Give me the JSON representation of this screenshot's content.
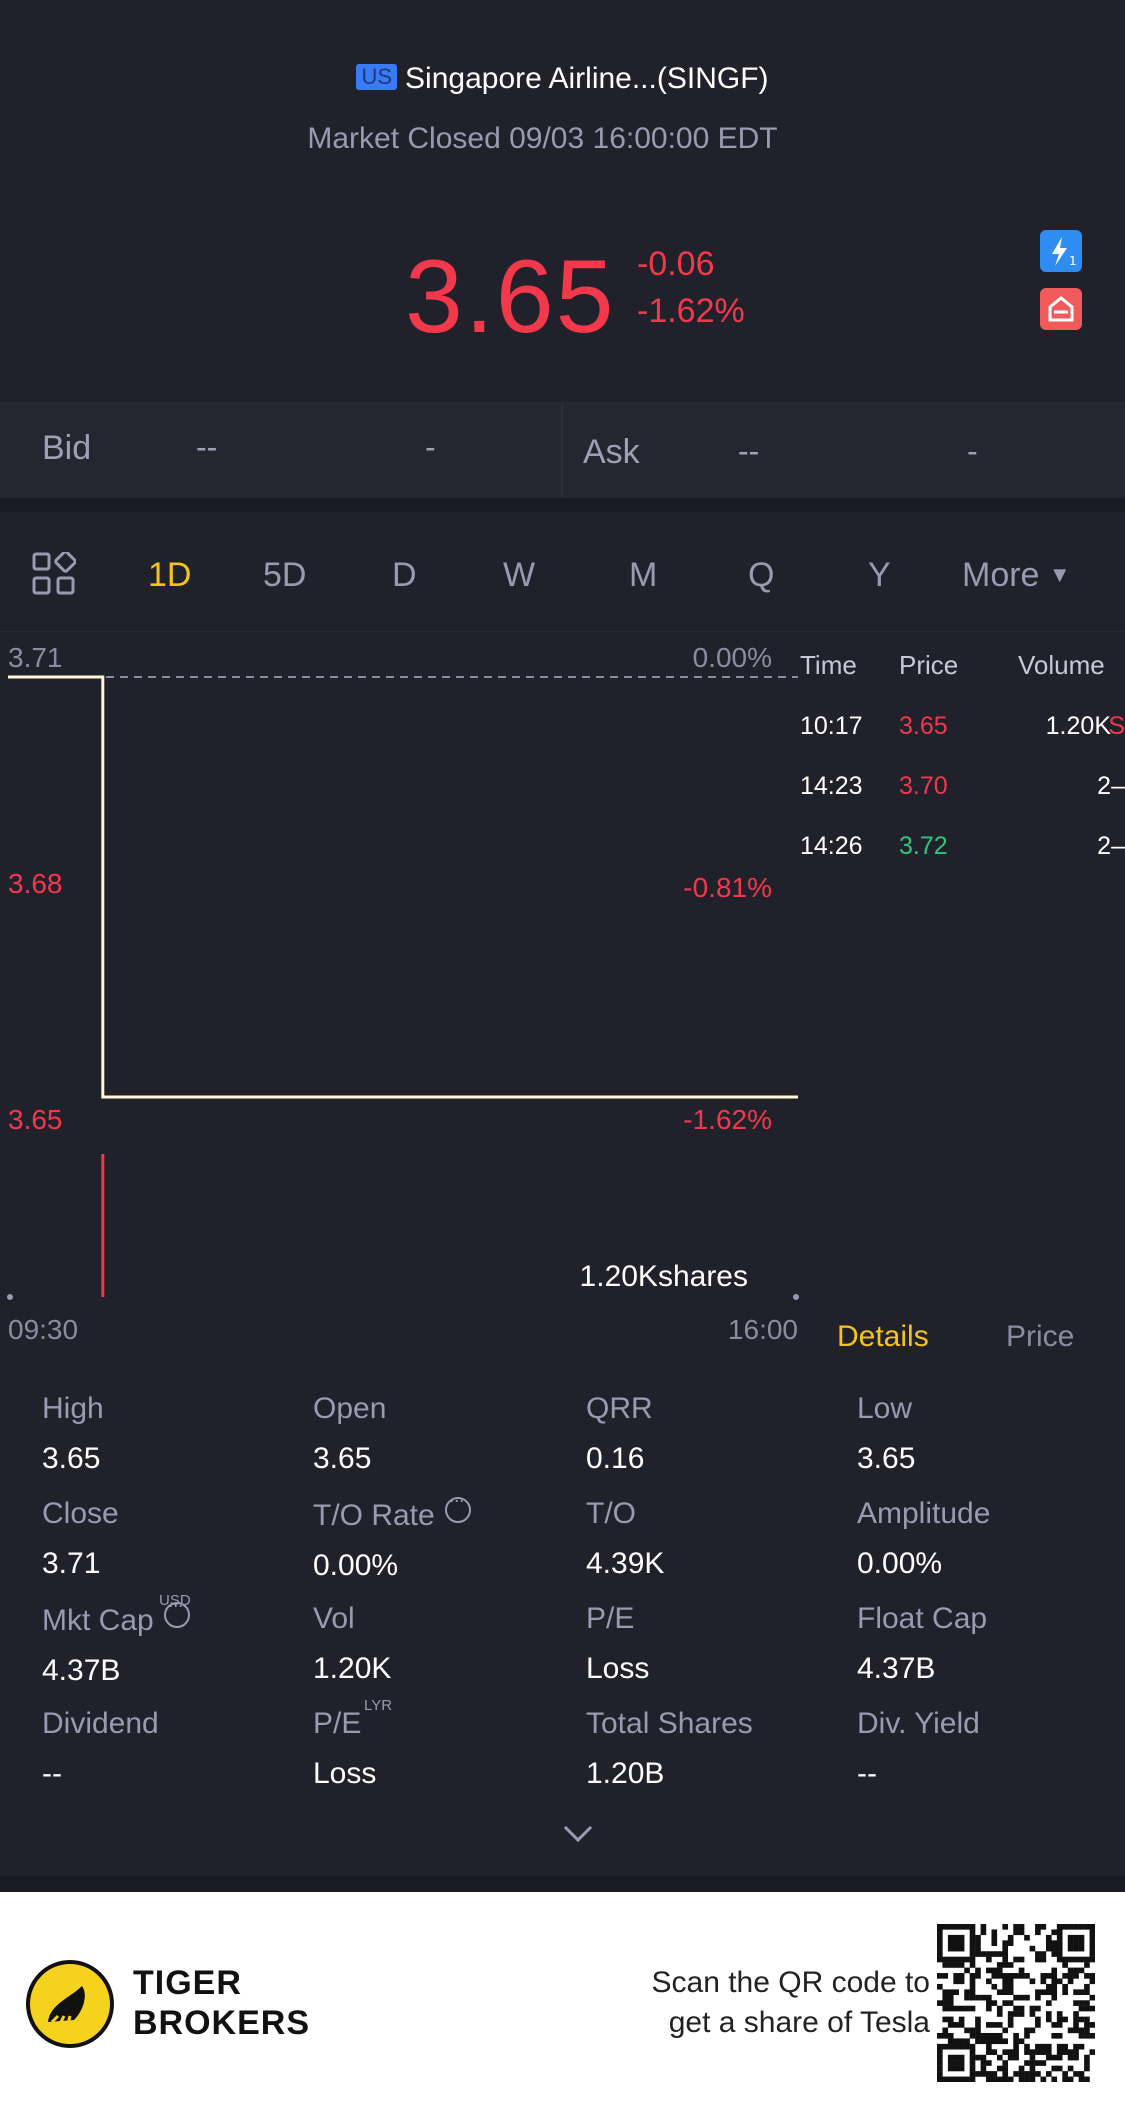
{
  "header": {
    "market_badge": "US",
    "title": "Singapore Airline...(SINGF)",
    "status": "Market Closed 09/03 16:00:00 EDT",
    "price": "3.65",
    "change": "-0.06",
    "change_pct": "-1.62%",
    "accent_down": "#f2384b",
    "accent_up": "#2ec77a",
    "highlight": "#f5c41b"
  },
  "quote": {
    "bid_label": "Bid",
    "bid_price": "--",
    "bid_size": "-",
    "ask_label": "Ask",
    "ask_price": "--",
    "ask_size": "-"
  },
  "periods": {
    "items": [
      "1D",
      "5D",
      "D",
      "W",
      "M",
      "Q",
      "Y"
    ],
    "active": "1D",
    "more_label": "More"
  },
  "chart_data": {
    "type": "line",
    "x_start": "09:30",
    "x_end": "16:00",
    "y_ticks": [
      "3.71",
      "3.68",
      "3.65"
    ],
    "pct_ticks": [
      "0.00%",
      "-0.81%",
      "-1.62%"
    ],
    "ylim": [
      3.65,
      3.71
    ],
    "prev_close": 3.71,
    "series": [
      {
        "values": [
          [
            0,
            3.71
          ],
          [
            0.12,
            3.71
          ],
          [
            0.12,
            3.65
          ],
          [
            1,
            3.65
          ]
        ]
      }
    ],
    "volume_label": "1.20Kshares"
  },
  "trades": {
    "headers": [
      "Time",
      "Price",
      "Volume"
    ],
    "rows": [
      {
        "time": "10:17",
        "price": "3.65",
        "volume": "1.20K",
        "flag": "S",
        "color": "#f2384b"
      },
      {
        "time": "14:23",
        "price": "3.70",
        "volume": "2",
        "flag": "–",
        "color": "#f2384b"
      },
      {
        "time": "14:26",
        "price": "3.72",
        "volume": "2",
        "flag": "–",
        "color": "#2ec77a"
      }
    ]
  },
  "panel_tabs": {
    "details": "Details",
    "price": "Price"
  },
  "stats": [
    {
      "label": "High",
      "value": "3.65"
    },
    {
      "label": "Open",
      "value": "3.65"
    },
    {
      "label": "QRR",
      "value": "0.16"
    },
    {
      "label": "Low",
      "value": "3.65"
    },
    {
      "label": "Close",
      "value": "3.71"
    },
    {
      "label": "T/O Rate",
      "value": "0.00%"
    },
    {
      "label": "T/O",
      "value": "4.39K"
    },
    {
      "label": "Amplitude",
      "value": "0.00%"
    },
    {
      "label": "Mkt Cap",
      "value": "4.37B",
      "sup": "USD"
    },
    {
      "label": "Vol",
      "value": "1.20K"
    },
    {
      "label": "P/E",
      "value": "Loss"
    },
    {
      "label": "Float Cap",
      "value": "4.37B"
    },
    {
      "label": "Dividend",
      "value": "--"
    },
    {
      "label": "P/E",
      "value": "Loss",
      "sup": "LYR"
    },
    {
      "label": "Total Shares",
      "value": "1.20B"
    },
    {
      "label": "Div. Yield",
      "value": "--"
    }
  ],
  "footer": {
    "brand_line1": "TIGER",
    "brand_line2": "BROKERS",
    "scan_line1": "Scan the QR code to",
    "scan_line2": "get a share of Tesla"
  }
}
